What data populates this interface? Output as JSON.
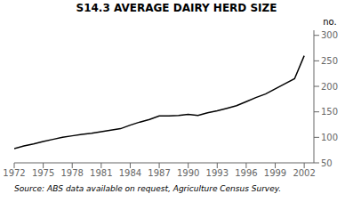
{
  "chart_data": {
    "type": "line",
    "title": "S14.3   AVERAGE DAIRY HERD SIZE",
    "ylabel": "no.",
    "annotations": [
      "Source: ABS data available on request, Agriculture Census Survey."
    ],
    "x": [
      1972,
      1973,
      1974,
      1975,
      1976,
      1977,
      1978,
      1979,
      1980,
      1981,
      1982,
      1983,
      1984,
      1985,
      1986,
      1987,
      1988,
      1989,
      1990,
      1991,
      1992,
      1993,
      1994,
      1995,
      1996,
      1997,
      1998,
      1999,
      2000,
      2001,
      2002
    ],
    "values": [
      78,
      83,
      87,
      92,
      96,
      100,
      103,
      106,
      108,
      111,
      114,
      117,
      124,
      130,
      135,
      142,
      142,
      143,
      145,
      143,
      148,
      152,
      157,
      162,
      170,
      178,
      185,
      195,
      205,
      215,
      260
    ],
    "color": "#000000",
    "xlim": [
      1972,
      2003
    ],
    "xticks": [
      1972,
      1975,
      1978,
      1981,
      1984,
      1987,
      1990,
      1993,
      1996,
      1999,
      2002
    ],
    "ylim": [
      50,
      310
    ],
    "yticks": [
      50,
      100,
      150,
      200,
      250,
      300
    ],
    "grid": false
  }
}
